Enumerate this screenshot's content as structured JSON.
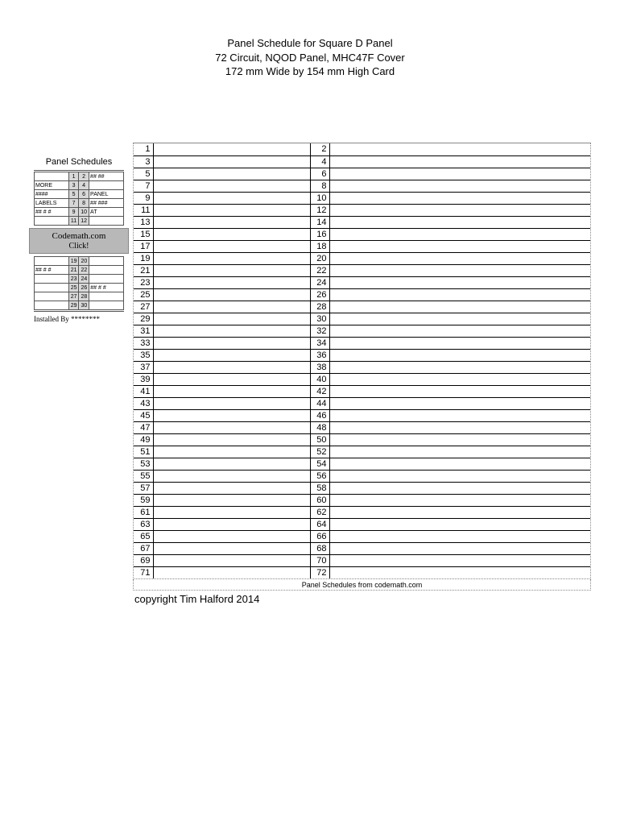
{
  "header": {
    "line1": "Panel Schedule for Square D Panel",
    "line2": "72 Circuit, NQOD Panel, MHC47F Cover",
    "line3": "172 mm Wide by 154 mm High Card"
  },
  "schedule": {
    "rows": 36,
    "footer_caption": "Panel Schedules from codemath.com"
  },
  "copyright": "copyright Tim Halford 2014",
  "sidebar": {
    "title": "Panel Schedules",
    "banner_line1": "Codemath.com",
    "banner_line2": "Click!",
    "installed": "Installed By ********",
    "rows_top": [
      {
        "l": "",
        "n1": "1",
        "n2": "2",
        "r": "## ##"
      },
      {
        "l": "MORE",
        "n1": "3",
        "n2": "4",
        "r": ""
      },
      {
        "l": "####",
        "n1": "5",
        "n2": "6",
        "r": "PANEL"
      },
      {
        "l": "LABELS",
        "n1": "7",
        "n2": "8",
        "r": "## ###"
      },
      {
        "l": "## # #",
        "n1": "9",
        "n2": "10",
        "r": "AT"
      },
      {
        "l": "",
        "n1": "11",
        "n2": "12",
        "r": ""
      }
    ],
    "rows_bot": [
      {
        "l": "",
        "n1": "19",
        "n2": "20",
        "r": ""
      },
      {
        "l": "## # #",
        "n1": "21",
        "n2": "22",
        "r": ""
      },
      {
        "l": "",
        "n1": "23",
        "n2": "24",
        "r": ""
      },
      {
        "l": "",
        "n1": "25",
        "n2": "26",
        "r": "## # #"
      },
      {
        "l": "",
        "n1": "27",
        "n2": "28",
        "r": ""
      },
      {
        "l": "",
        "n1": "29",
        "n2": "30",
        "r": ""
      }
    ]
  },
  "colors": {
    "text": "#000000",
    "background": "#ffffff",
    "border": "#000000",
    "dotted_border": "#888888",
    "sidebar_gray": "#d8d8d8",
    "banner_gray": "#b8b8b8"
  }
}
